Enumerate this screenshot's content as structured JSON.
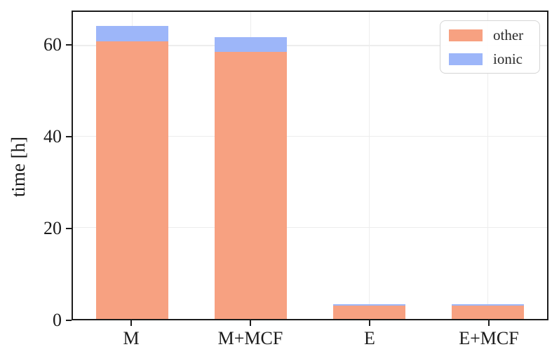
{
  "chart_data": {
    "type": "bar",
    "stacked": true,
    "title": "",
    "xlabel": "",
    "ylabel": "time [h]",
    "categories": [
      "M",
      "M+MCF",
      "E",
      "E+MCF"
    ],
    "series": [
      {
        "name": "other",
        "color": "#F7A181",
        "values": [
          61.1,
          58.7,
          2.9,
          2.9
        ]
      },
      {
        "name": "ionic",
        "color": "#9DB6F9",
        "values": [
          3.3,
          3.2,
          0.3,
          0.3
        ]
      }
    ],
    "totals": [
      64.4,
      61.9,
      3.2,
      3.2
    ],
    "ylim": [
      0,
      67.5
    ],
    "yticks": [
      0,
      20,
      40,
      60
    ],
    "grid": true,
    "legend_position": "upper right",
    "colors": {
      "spine": "#1c1c1c",
      "gridline": "#ededed",
      "text": "#1a1a1a",
      "legend_border": "#d5d5d5"
    }
  }
}
